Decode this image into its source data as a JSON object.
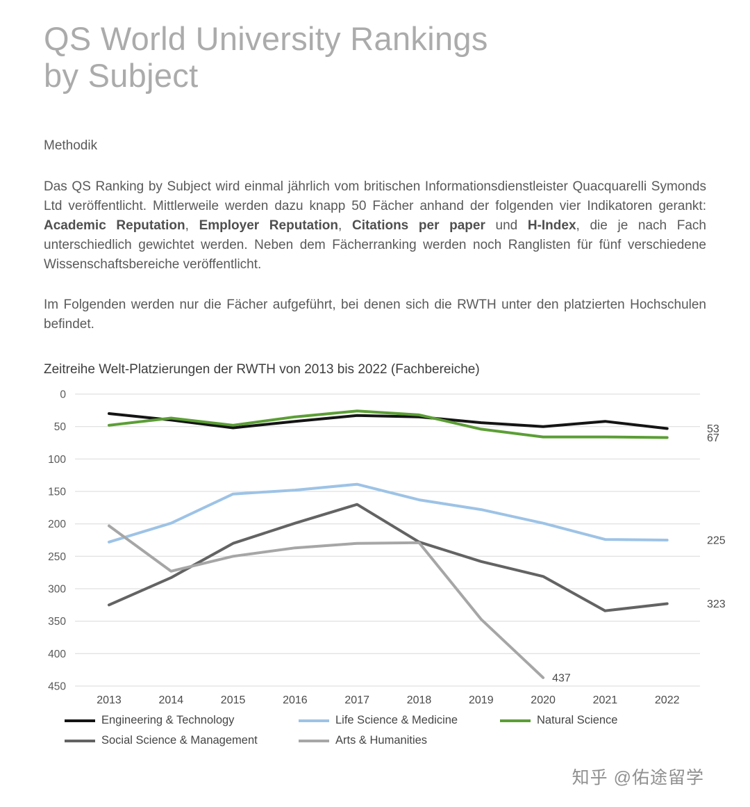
{
  "header": {
    "title_line1": "QS World University Rankings",
    "title_line2": "by Subject"
  },
  "section": {
    "heading": "Methodik",
    "paragraph1_segments": [
      {
        "text": "Das QS Ranking by Subject wird einmal jährlich vom britischen Informationsdienstleister Quacquarelli Symonds Ltd veröffentlicht. Mittlerweile werden dazu knapp 50 Fächer anhand der folgenden vier Indikatoren gerankt: ",
        "bold": false
      },
      {
        "text": "Academic Reputation",
        "bold": true
      },
      {
        "text": ", ",
        "bold": false
      },
      {
        "text": "Employer Reputation",
        "bold": true
      },
      {
        "text": ", ",
        "bold": false
      },
      {
        "text": "Citations per paper",
        "bold": true
      },
      {
        "text": " und ",
        "bold": false
      },
      {
        "text": "H-Index",
        "bold": true
      },
      {
        "text": ", die je nach Fach unterschiedlich gewichtet werden. Neben dem Fächerranking werden noch Ranglisten für fünf verschiedene Wissenschaftsbereiche veröffentlicht.",
        "bold": false
      }
    ],
    "paragraph2": "Im Folgenden werden nur die Fächer aufgeführt, bei denen sich die RWTH unter den platzierten Hochschulen befindet."
  },
  "chart_data": {
    "type": "line",
    "title": "Zeitreihe Welt-Platzierungen der RWTH von 2013 bis 2022 (Fachbereiche)",
    "x": [
      2013,
      2014,
      2015,
      2016,
      2017,
      2018,
      2019,
      2020,
      2021,
      2022
    ],
    "xlabel": "",
    "ylabel": "",
    "y_axis": {
      "min": 0,
      "max": 450,
      "tick_step": 50,
      "inverted": true,
      "grid": true
    },
    "legend_position": "bottom",
    "series": [
      {
        "name": "Engineering & Technology",
        "color": "#141414",
        "values": [
          30,
          40,
          52,
          42,
          33,
          35,
          44,
          50,
          42,
          53
        ],
        "end_label": "53"
      },
      {
        "name": "Life Science & Medicine",
        "color": "#9dc3e6",
        "values": [
          228,
          199,
          154,
          148,
          139,
          163,
          178,
          199,
          224,
          225
        ],
        "end_label": "225"
      },
      {
        "name": "Natural Science",
        "color": "#5b9e35",
        "values": [
          48,
          37,
          48,
          35,
          26,
          32,
          54,
          66,
          66,
          67
        ],
        "end_label": "67"
      },
      {
        "name": "Social Science & Management",
        "color": "#636363",
        "values": [
          325,
          283,
          230,
          199,
          170,
          228,
          258,
          281,
          334,
          323
        ],
        "end_label": "323"
      },
      {
        "name": "Arts & Humanities",
        "color": "#a6a6a6",
        "values": [
          203,
          273,
          250,
          237,
          230,
          229,
          347,
          437,
          null,
          null
        ],
        "end_label": "437"
      }
    ],
    "grid_color": "#d9d9d9"
  },
  "watermark": {
    "text": "知乎 @佑途留学"
  }
}
